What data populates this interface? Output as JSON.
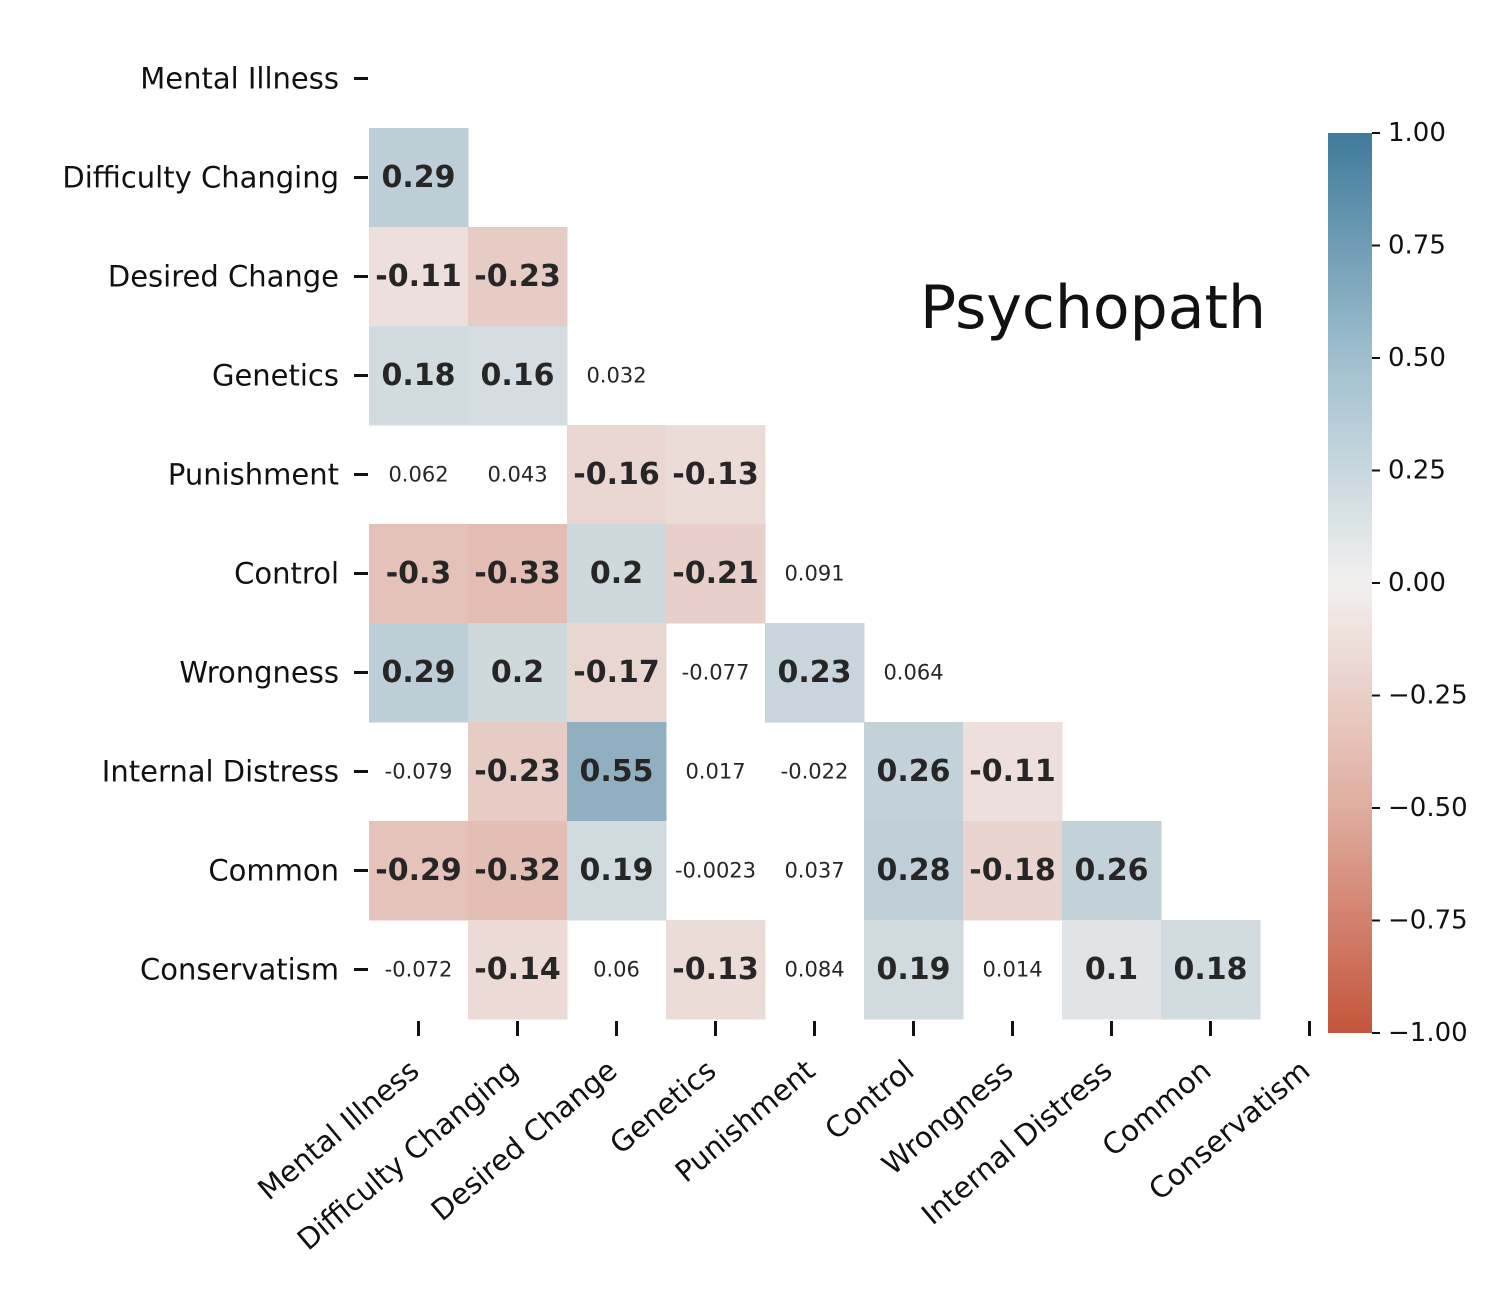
{
  "chart_data": {
    "type": "heatmap",
    "title": "Psychopath",
    "variables": [
      "Mental Illness",
      "Difficulty Changing",
      "Desired Change",
      "Genetics",
      "Punishment",
      "Control",
      "Wrongness",
      "Internal Distress",
      "Common",
      "Conservatism"
    ],
    "matrix_lower_triangle": [
      [],
      [
        "0.29"
      ],
      [
        "-0.11",
        "-0.23"
      ],
      [
        "0.18",
        "0.16",
        "0.032"
      ],
      [
        "0.062",
        "0.043",
        "-0.16",
        "-0.13"
      ],
      [
        "-0.3",
        "-0.33",
        "0.2",
        "-0.21",
        "0.091"
      ],
      [
        "0.29",
        "0.2",
        "-0.17",
        "-0.077",
        "0.23",
        "0.064"
      ],
      [
        "-0.079",
        "-0.23",
        "0.55",
        "0.017",
        "-0.022",
        "0.26",
        "-0.11"
      ],
      [
        "-0.29",
        "-0.32",
        "0.19",
        "-0.0023",
        "0.037",
        "0.28",
        "-0.18",
        "0.26"
      ],
      [
        "-0.072",
        "-0.14",
        "0.06",
        "-0.13",
        "0.084",
        "0.19",
        "0.014",
        "0.1",
        "0.18"
      ]
    ],
    "highlight_threshold_abs": 0.1,
    "colorbar": {
      "min": -1.0,
      "max": 1.0,
      "tick_labels": [
        "1.00",
        "0.75",
        "0.50",
        "0.25",
        "0.00",
        "−0.25",
        "−0.50",
        "−0.75",
        "−1.00"
      ],
      "colors": {
        "negative": "#c4553b",
        "neutral": "#f2f0ef",
        "positive": "#3f7b9b"
      }
    },
    "grid": false,
    "legend_placement": "right"
  }
}
